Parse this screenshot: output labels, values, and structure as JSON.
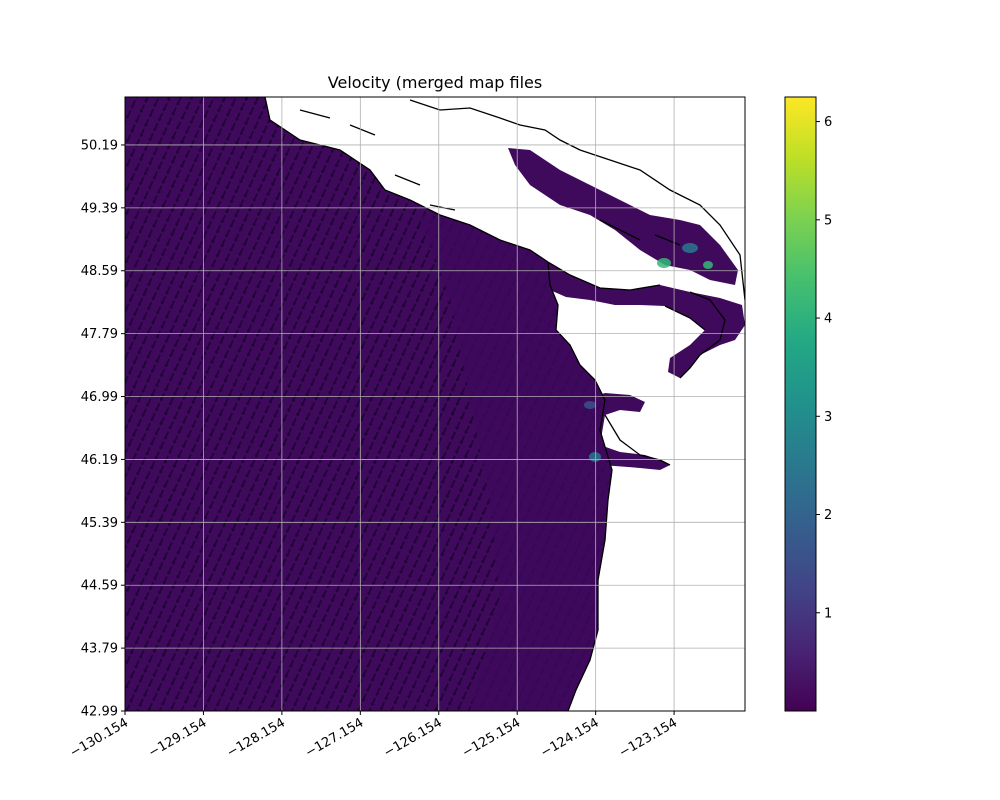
{
  "chart_data": {
    "type": "heatmap",
    "title": "Velocity (merged map files",
    "xlabel": "",
    "ylabel": "",
    "xlim": [
      -130.154,
      -122.25
    ],
    "ylim": [
      42.99,
      50.8
    ],
    "x_ticks": [
      "−130.154",
      "−129.154",
      "−128.154",
      "−127.154",
      "−126.154",
      "−125.154",
      "−124.154",
      "−123.154"
    ],
    "x_tick_values": [
      -130.154,
      -129.154,
      -128.154,
      -127.154,
      -126.154,
      -125.154,
      -124.154,
      -123.154
    ],
    "y_ticks": [
      "42.99",
      "43.79",
      "44.59",
      "45.39",
      "46.19",
      "46.99",
      "47.79",
      "48.59",
      "49.39",
      "50.19"
    ],
    "y_tick_values": [
      42.99,
      43.79,
      44.59,
      45.39,
      46.19,
      46.99,
      47.79,
      48.59,
      49.39,
      50.19
    ],
    "grid": true,
    "colorbar": {
      "colormap": "viridis",
      "range": [
        0.0,
        6.25
      ],
      "ticks": [
        "1",
        "2",
        "3",
        "4",
        "5",
        "6"
      ],
      "tick_values": [
        1,
        2,
        3,
        4,
        5,
        6
      ]
    },
    "quiver": true,
    "land_color": "#ffffff",
    "coastline_color": "#000000",
    "field_color": "#3f0a5c",
    "hotspot_colors": [
      "#35b779",
      "#2a788e",
      "#3b528b"
    ]
  }
}
